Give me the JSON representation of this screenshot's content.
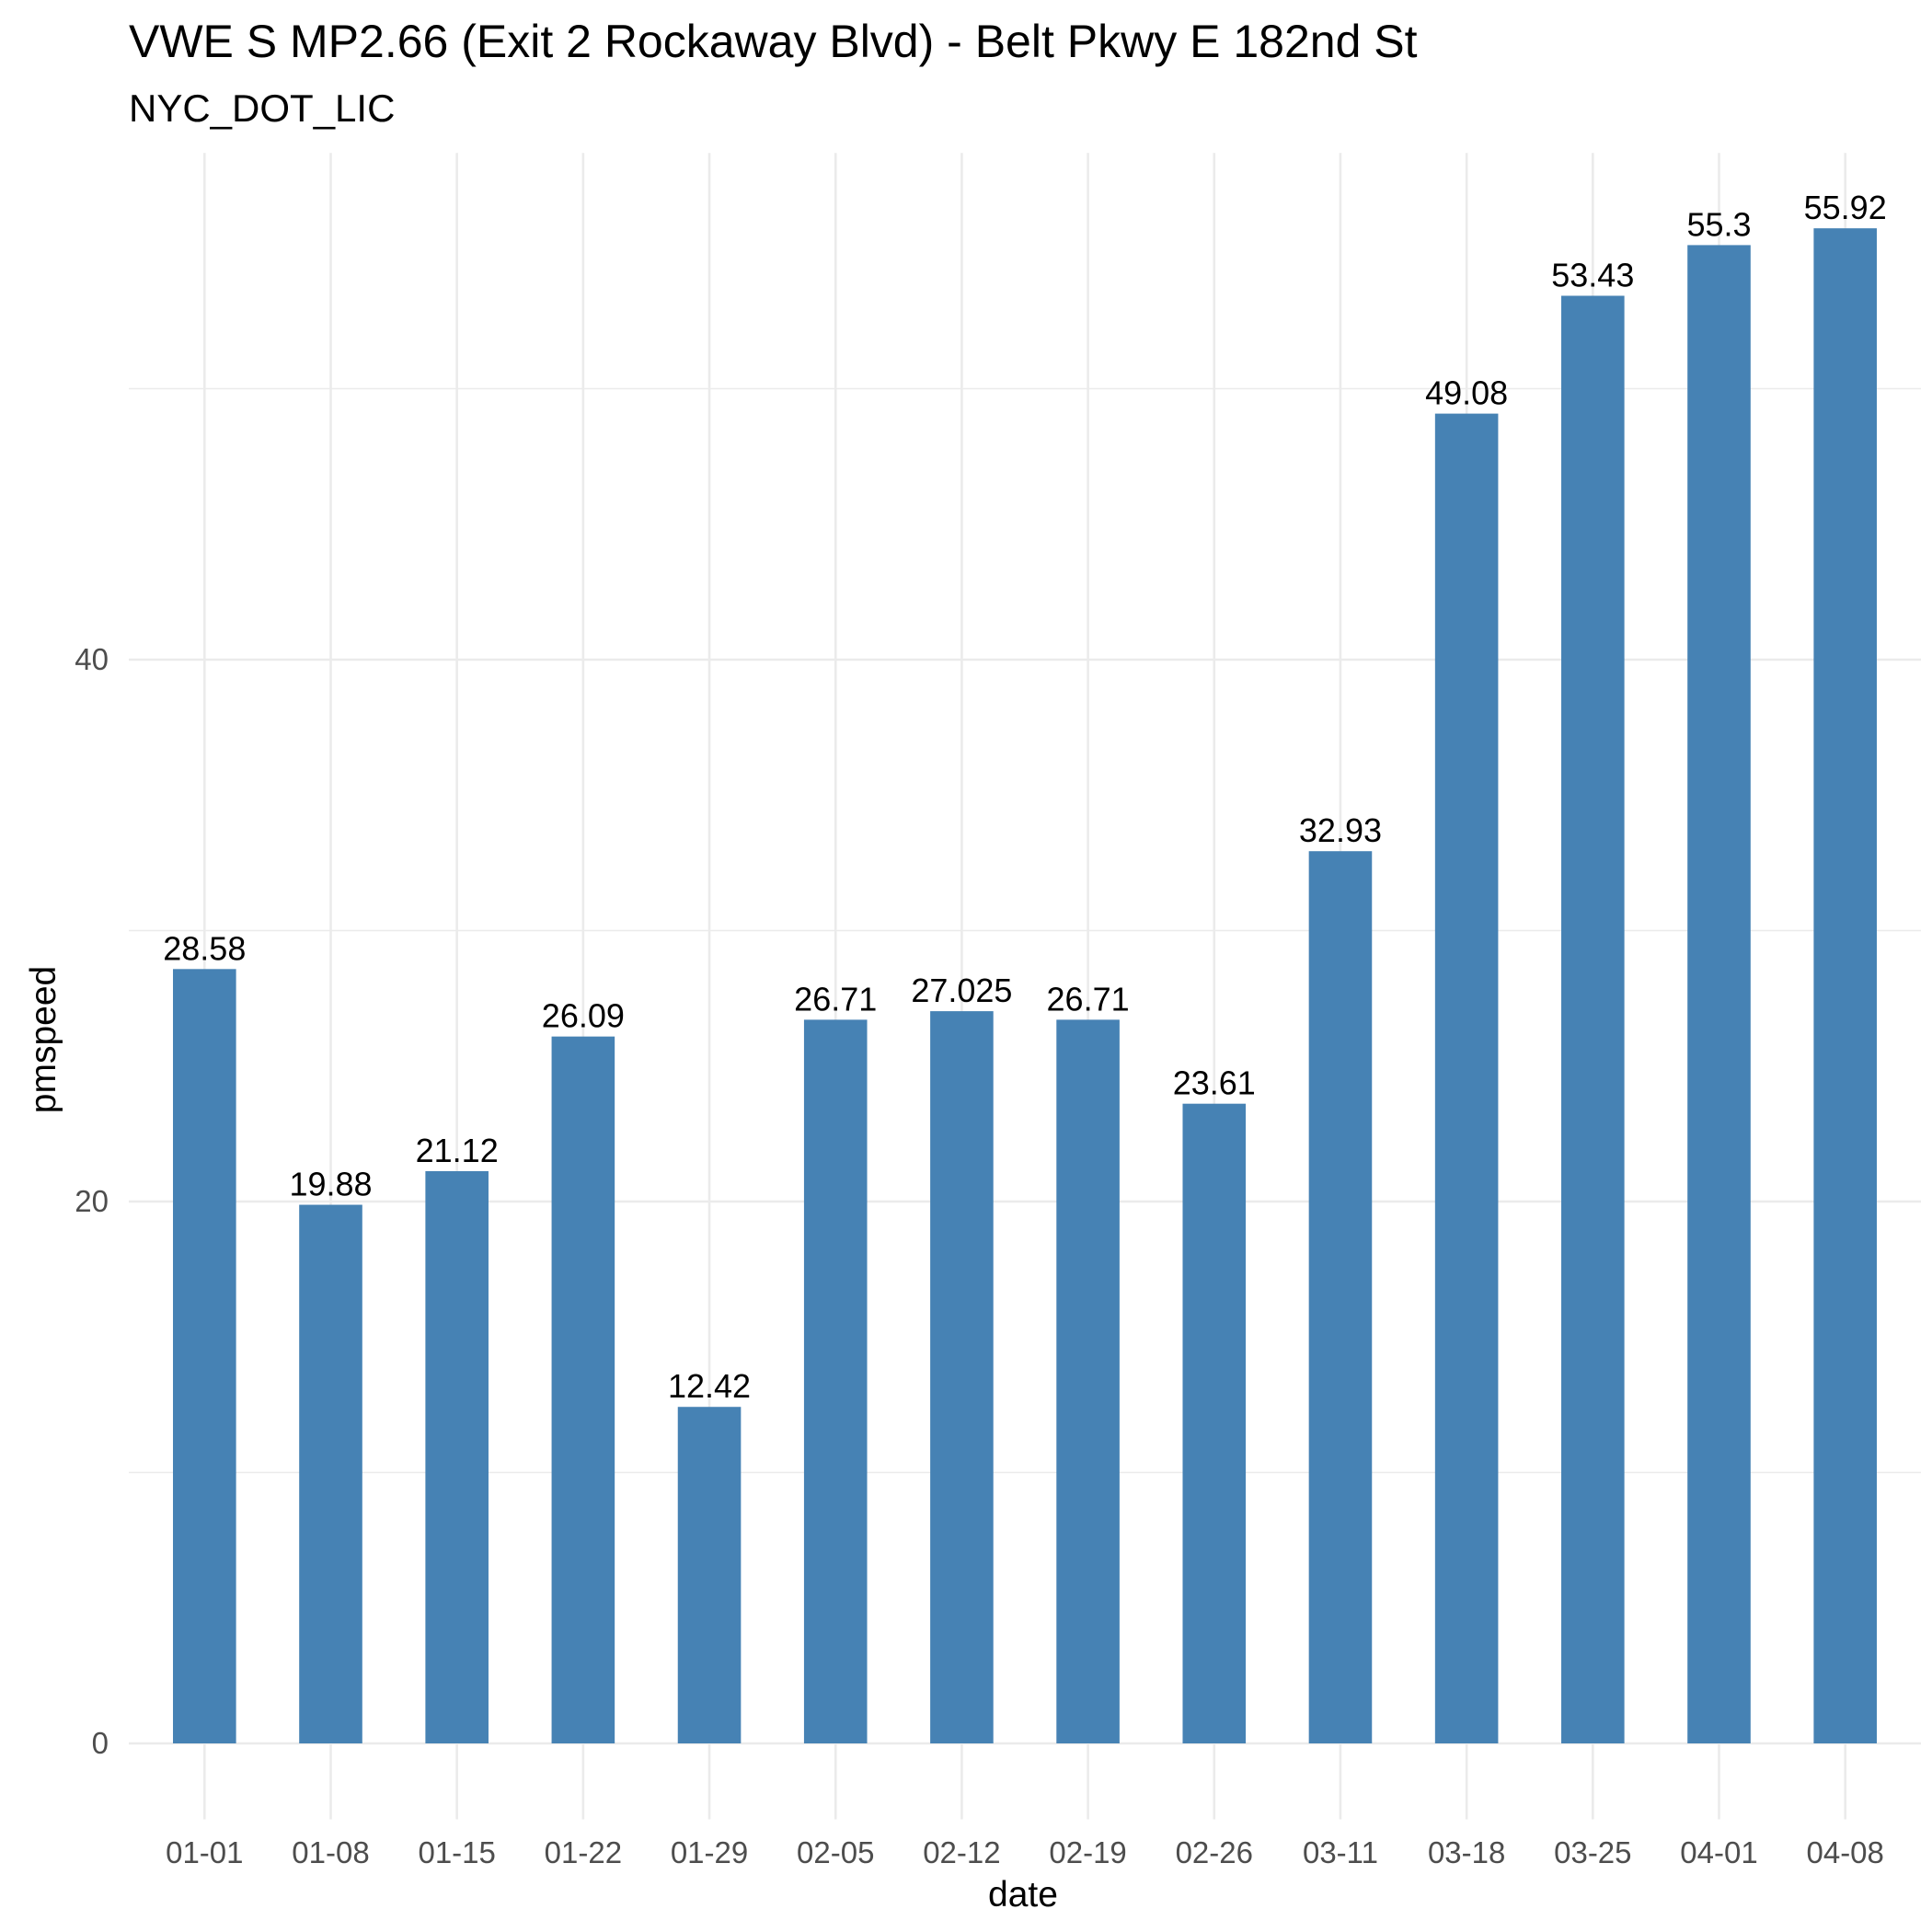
{
  "chart_data": {
    "type": "bar",
    "title": "VWE S MP2.66 (Exit 2 Rockaway Blvd) - Belt Pkwy E 182nd St",
    "subtitle": "NYC_DOT_LIC",
    "xlabel": "date",
    "ylabel": "pmspeed",
    "categories": [
      "01-01",
      "01-08",
      "01-15",
      "01-22",
      "01-29",
      "02-05",
      "02-12",
      "02-19",
      "02-26",
      "03-11",
      "03-18",
      "03-25",
      "04-01",
      "04-08"
    ],
    "values": [
      28.58,
      19.88,
      21.12,
      26.09,
      12.42,
      26.71,
      27.025,
      26.71,
      23.61,
      32.93,
      49.08,
      53.43,
      55.3,
      55.92
    ],
    "value_labels": [
      "28.58",
      "19.88",
      "21.12",
      "26.09",
      "12.42",
      "26.71",
      "27.025",
      "26.71",
      "23.61",
      "32.93",
      "49.08",
      "53.43",
      "55.3",
      "55.92"
    ],
    "y_ticks": [
      0,
      20,
      40
    ],
    "y_tick_labels": [
      "0",
      "20",
      "40"
    ],
    "y_minor_ticks": [
      10,
      30,
      50
    ],
    "ylim": [
      -2.8,
      58.7
    ],
    "grid": true,
    "legend": "none",
    "bar_color": "#4682b4"
  }
}
